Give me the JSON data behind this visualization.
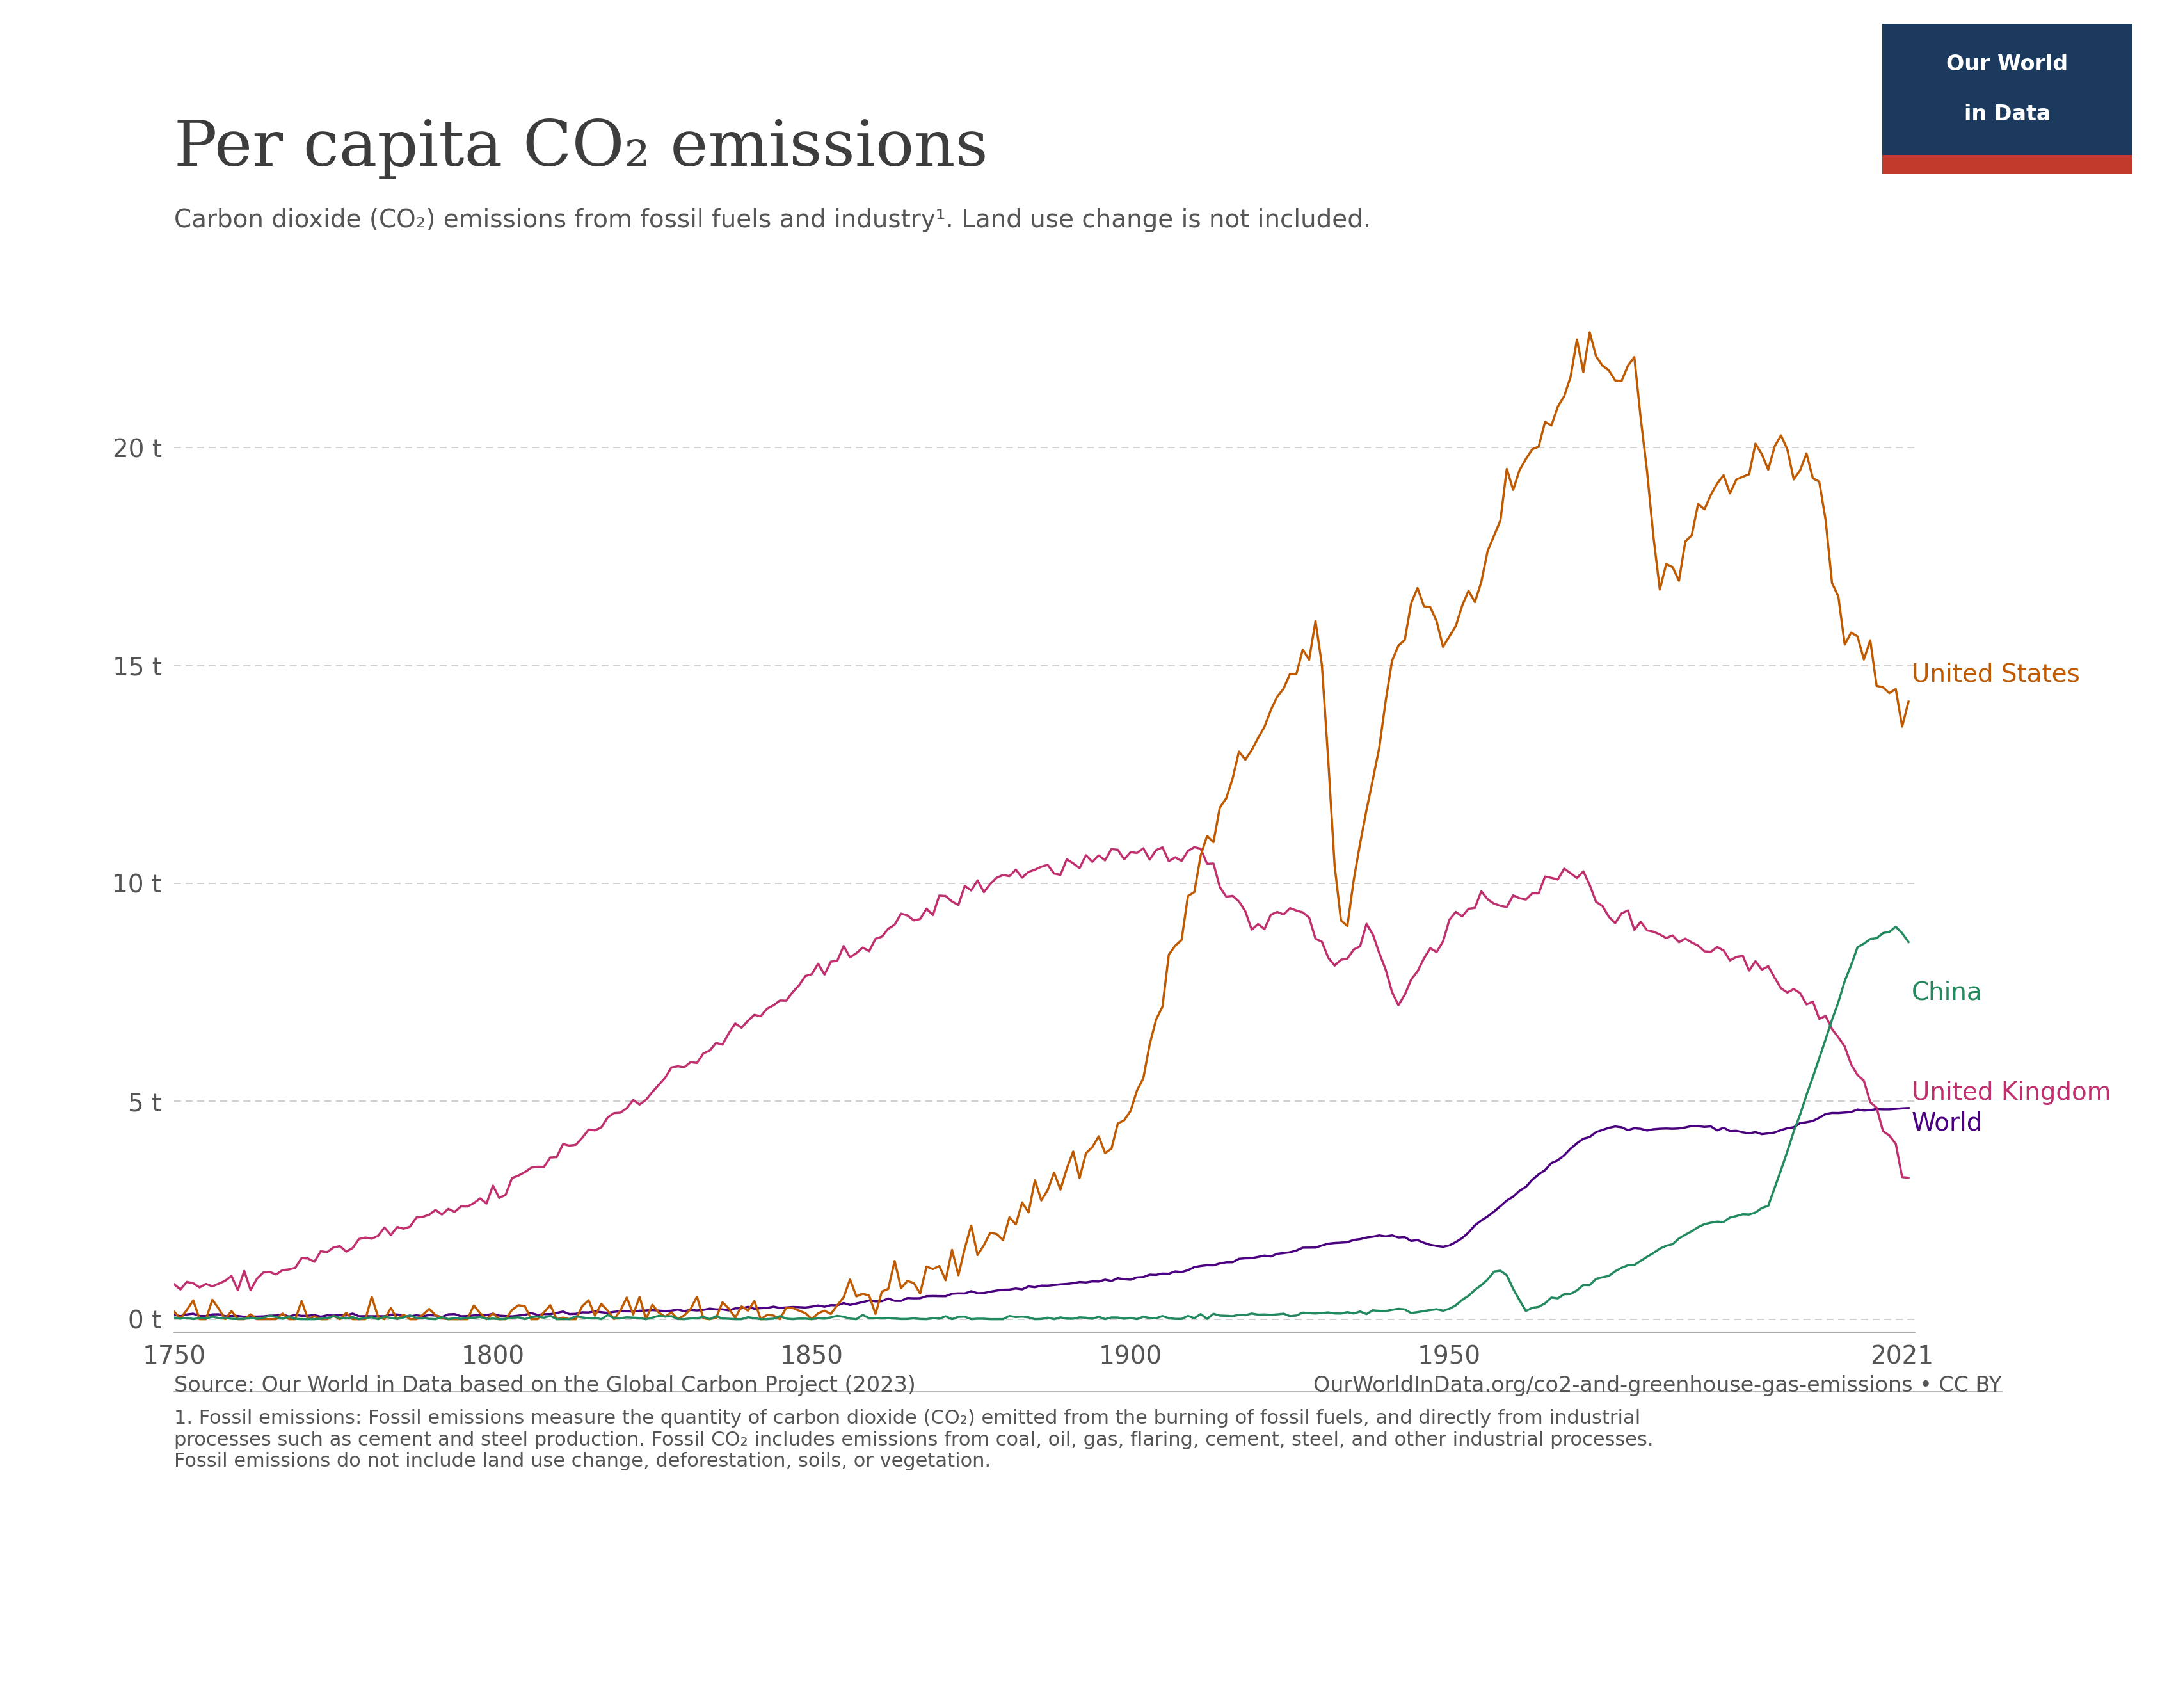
{
  "title": "Per capita CO₂ emissions",
  "subtitle": "Carbon dioxide (CO₂) emissions from fossil fuels and industry¹. Land use change is not included.",
  "source_left": "Source: Our World in Data based on the Global Carbon Project (2023)",
  "source_right": "OurWorldInData.org/co2-and-greenhouse-gas-emissions • CC BY",
  "footnote": "1. Fossil emissions: Fossil emissions measure the quantity of carbon dioxide (CO₂) emitted from the burning of fossil fuels, and directly from industrial\nprocesses such as cement and steel production. Fossil CO₂ includes emissions from coal, oil, gas, flaring, cement, steel, and other industrial processes.\nFossil emissions do not include land use change, deforestation, soils, or vegetation.",
  "yticks": [
    0,
    5,
    10,
    15,
    20
  ],
  "ytick_labels": [
    "0 t",
    "5 t",
    "10 t",
    "15 t",
    "20 t"
  ],
  "xlim": [
    1750,
    2023
  ],
  "ylim": [
    -0.3,
    24.0
  ],
  "xticks": [
    1750,
    1800,
    1850,
    1900,
    1950,
    2021
  ],
  "background_color": "#ffffff",
  "grid_color": "#cccccc",
  "colors": {
    "United States": "#bf5a00",
    "United Kingdom": "#c0306e",
    "China": "#228a5e",
    "World": "#4b0082"
  },
  "label_fs": 28,
  "title_fontsize": 72,
  "subtitle_fontsize": 28,
  "source_fontsize": 24,
  "footnote_fontsize": 22,
  "tick_fontsize": 28
}
